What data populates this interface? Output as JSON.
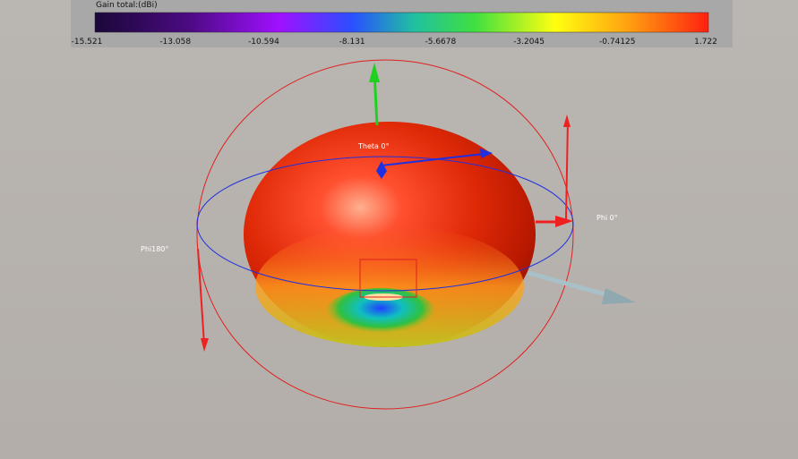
{
  "colorbar": {
    "title": "Gain total:(dBi)",
    "ticks": [
      -15.521,
      -13.058,
      -10.594,
      -8.131,
      -5.6678,
      -3.2045,
      -0.74125,
      1.722
    ]
  },
  "annotations": {
    "theta": "Theta 0°",
    "phi0": "Phi 0°",
    "phi180": "Phi180°"
  }
}
